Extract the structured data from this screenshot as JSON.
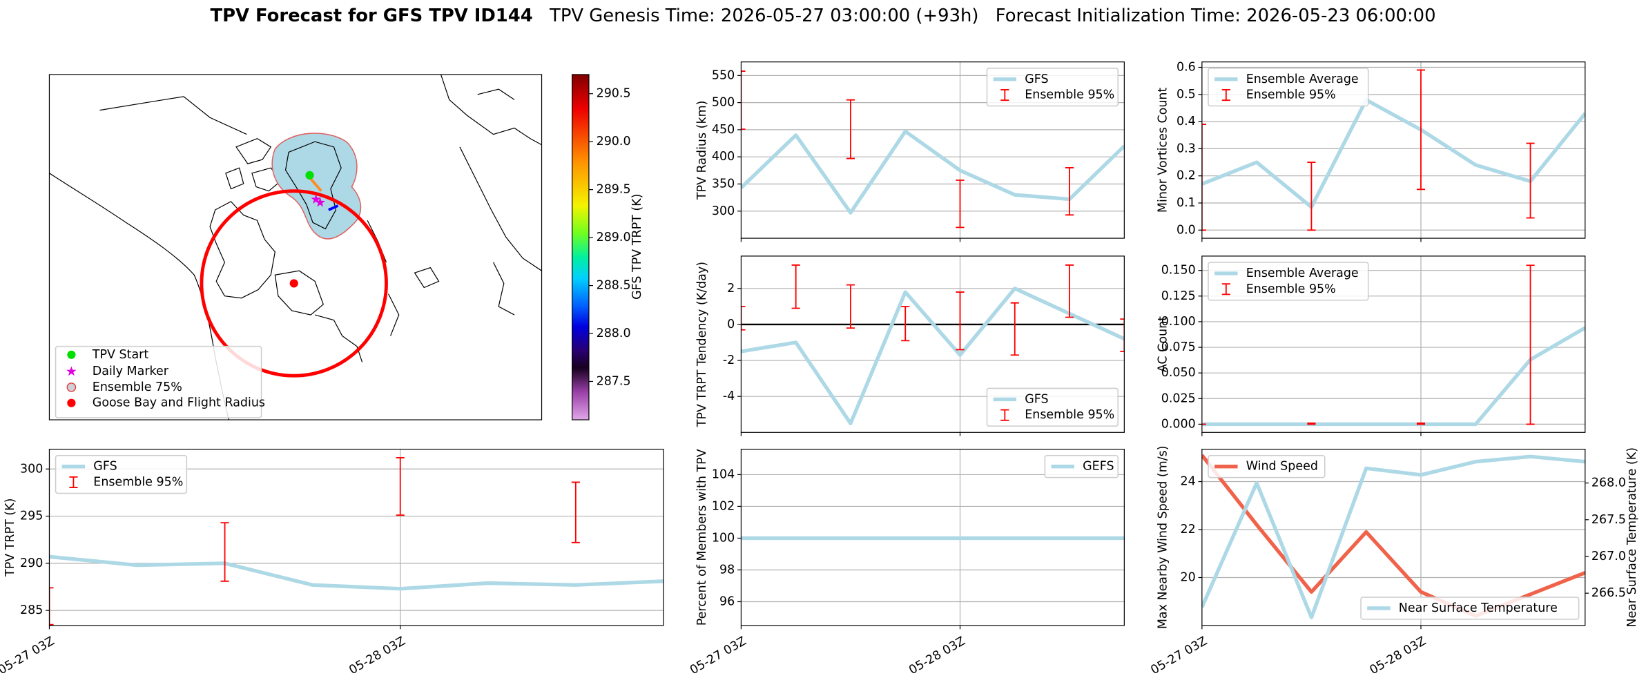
{
  "title": {
    "main": "TPV Forecast for GFS TPV ID144",
    "genesis": "TPV Genesis Time: 2026-05-27 03:00:00 (+93h)",
    "init": "Forecast Initialization Time: 2026-05-23 06:00:00"
  },
  "chart_data": [
    {
      "type": "map",
      "legend_entries": [
        "TPV Start",
        "Daily Marker",
        "Ensemble 75%",
        "Goose Bay and Flight Radius"
      ],
      "colorbar": {
        "label": "GFS TPV TRPT (K)",
        "lim": [
          287.1,
          290.7
        ],
        "ticks": [
          287.5,
          {
            "value": 288,
            "label": "288.0"
          },
          288.5,
          {
            "value": 289,
            "label": "289.0"
          },
          289.5,
          {
            "value": 290,
            "label": "290.0"
          },
          290.5
        ]
      }
    },
    {
      "type": "line",
      "ylabel": "TPV Radius (km)",
      "ylim": [
        250,
        575
      ],
      "yticks": [
        300,
        350,
        400,
        450,
        500,
        550
      ],
      "grid": true,
      "legend": "upper right",
      "series": [
        {
          "name": "GFS",
          "color": "#add8e6",
          "values": [
            343,
            440,
            297,
            447,
            375,
            330,
            322,
            420
          ]
        },
        {
          "name": "Ensemble 95%",
          "color": "#ff0000",
          "lower": [
            451,
            null,
            397,
            null,
            270,
            null,
            293,
            null
          ],
          "upper": [
            558,
            null,
            505,
            null,
            357,
            null,
            380,
            null
          ]
        }
      ]
    },
    {
      "type": "line",
      "ylabel": "Minor Vortices Count",
      "ylim": [
        -0.03,
        0.62
      ],
      "yticks": [
        {
          "value": 0,
          "label": "0.0"
        },
        0.1,
        0.2,
        0.3,
        0.4,
        0.5,
        0.6
      ],
      "grid": true,
      "legend": "upper left",
      "series": [
        {
          "name": "Ensemble Average",
          "color": "#add8e6",
          "values": [
            0.17,
            0.25,
            0.085,
            0.48,
            0.37,
            0.24,
            0.18,
            0.43
          ]
        },
        {
          "name": "Ensemble 95%",
          "color": "#ff0000",
          "lower": [
            0,
            null,
            0,
            null,
            0.15,
            null,
            0.045,
            null
          ],
          "upper": [
            0.39,
            null,
            0.25,
            null,
            0.59,
            null,
            0.32,
            null
          ]
        }
      ]
    },
    {
      "type": "line",
      "ylabel": "TPV TRPT Tendency (K/day)",
      "ylim": [
        -6.0,
        3.8
      ],
      "yticks": [
        -4,
        -2,
        0,
        2
      ],
      "grid": true,
      "legend": "lower right",
      "hline": 0,
      "series": [
        {
          "name": "GFS",
          "color": "#add8e6",
          "values": [
            -1.5,
            -1.0,
            -5.5,
            1.8,
            -1.7,
            2.0,
            0.6,
            -0.8
          ]
        },
        {
          "name": "Ensemble 95%",
          "color": "#ff0000",
          "lower": [
            -0.3,
            0.9,
            -0.2,
            -0.9,
            -1.4,
            -1.7,
            0.4,
            -1.5
          ],
          "upper": [
            1.0,
            3.3,
            2.2,
            1.0,
            1.8,
            1.2,
            3.3,
            0.3
          ]
        }
      ]
    },
    {
      "type": "line",
      "ylabel": "AC Count",
      "ylim": [
        -0.008,
        0.164
      ],
      "yticks": [
        {
          "value": 0,
          "label": "0.000"
        },
        0.025,
        {
          "value": 0.05,
          "label": "0.050"
        },
        0.075,
        {
          "value": 0.1,
          "label": "0.100"
        },
        0.125,
        {
          "value": 0.15,
          "label": "0.150"
        }
      ],
      "grid": true,
      "legend": "upper left",
      "series": [
        {
          "name": "Ensemble Average",
          "color": "#add8e6",
          "values": [
            0,
            0,
            0,
            0,
            0,
            0,
            0.063,
            0.094
          ]
        },
        {
          "name": "Ensemble 95%",
          "color": "#ff0000",
          "lower": [
            0,
            null,
            0,
            null,
            0,
            null,
            0,
            null
          ],
          "upper": [
            0,
            null,
            0.001,
            null,
            0.001,
            null,
            0.155,
            null
          ]
        }
      ]
    },
    {
      "type": "line",
      "categories": [
        "05-27 03Z",
        null,
        null,
        null,
        "05-28 03Z",
        null,
        null,
        null
      ],
      "ylabel": "TPV TRPT (K)",
      "ylim": [
        283.4,
        302.1
      ],
      "yticks": [
        285,
        290,
        295,
        300
      ],
      "grid": true,
      "legend": "upper left",
      "series": [
        {
          "name": "GFS",
          "color": "#add8e6",
          "values": [
            290.7,
            289.8,
            290.0,
            287.7,
            287.3,
            287.9,
            287.7,
            288.1
          ]
        },
        {
          "name": "Ensemble 95%",
          "color": "#ff0000",
          "lower": [
            283.5,
            null,
            288.1,
            null,
            295.1,
            null,
            292.2,
            null
          ],
          "upper": [
            287.4,
            null,
            294.3,
            null,
            301.2,
            null,
            298.6,
            null
          ]
        }
      ]
    },
    {
      "type": "line",
      "categories": [
        "05-27 03Z",
        null,
        null,
        null,
        "05-28 03Z",
        null,
        null,
        null
      ],
      "ylabel": "Percent of Members with TPV",
      "ylim": [
        94.5,
        105.6
      ],
      "yticks": [
        96,
        98,
        100,
        102,
        104
      ],
      "grid": true,
      "legend": "upper right",
      "series": [
        {
          "name": "GEFS",
          "color": "#add8e6",
          "values": [
            100,
            100,
            100,
            100,
            100,
            100,
            100,
            100
          ]
        }
      ]
    },
    {
      "type": "line",
      "categories": [
        "05-27 03Z",
        null,
        null,
        null,
        "05-28 03Z",
        null,
        null,
        null
      ],
      "ylabel": "Max Nearby Wind Speed (m/s)",
      "ycolor": "#f0624a",
      "y2label": "Near Surface Temperature (K)",
      "y2color": "#4169e1",
      "ylim": [
        18.0,
        25.35
      ],
      "yticks": [
        20,
        22,
        24
      ],
      "y2lim": [
        266.06,
        268.46
      ],
      "y2ticks": [
        266.5,
        {
          "value": 267,
          "label": "267.0"
        },
        267.5,
        {
          "value": 268,
          "label": "268.0"
        }
      ],
      "grid": true,
      "series": [
        {
          "name": "Wind Speed",
          "color": "#f0624a",
          "legend": "upper left",
          "values": [
            25.1,
            22.2,
            19.4,
            21.9,
            19.4,
            18.4,
            19.3,
            20.2
          ]
        },
        {
          "name": "Near Surface Temperature",
          "color": "#add8e6",
          "axis": "y2",
          "legend": "lower right",
          "values": [
            266.31,
            268.0,
            266.17,
            268.2,
            268.11,
            268.29,
            268.36,
            268.29
          ]
        }
      ]
    }
  ]
}
